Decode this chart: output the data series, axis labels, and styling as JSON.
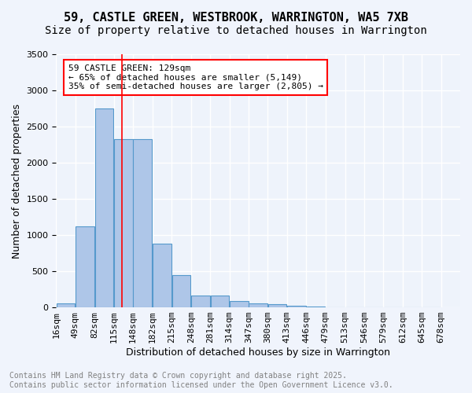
{
  "title_line1": "59, CASTLE GREEN, WESTBROOK, WARRINGTON, WA5 7XB",
  "title_line2": "Size of property relative to detached houses in Warrington",
  "xlabel": "Distribution of detached houses by size in Warrington",
  "ylabel": "Number of detached properties",
  "bar_color": "#aec6e8",
  "bar_edge_color": "#5599cc",
  "bins": [
    16,
    49,
    82,
    115,
    148,
    182,
    215,
    248,
    281,
    314,
    347,
    380,
    413,
    446,
    479,
    513,
    546,
    579,
    612,
    645,
    678
  ],
  "bin_labels": [
    "16sqm",
    "49sqm",
    "82sqm",
    "115sqm",
    "148sqm",
    "182sqm",
    "215sqm",
    "248sqm",
    "281sqm",
    "314sqm",
    "347sqm",
    "380sqm",
    "413sqm",
    "446sqm",
    "479sqm",
    "513sqm",
    "546sqm",
    "579sqm",
    "612sqm",
    "645sqm",
    "678sqm"
  ],
  "values": [
    50,
    1120,
    2750,
    2330,
    2330,
    880,
    450,
    165,
    165,
    90,
    55,
    40,
    25,
    10,
    5,
    5,
    5,
    5,
    5,
    5
  ],
  "red_line_x": 129,
  "annotation_title": "59 CASTLE GREEN: 129sqm",
  "annotation_line2": "← 65% of detached houses are smaller (5,149)",
  "annotation_line3": "35% of semi-detached houses are larger (2,805) →",
  "ylim": [
    0,
    3500
  ],
  "yticks": [
    0,
    500,
    1000,
    1500,
    2000,
    2500,
    3000,
    3500
  ],
  "background_color": "#eef3fb",
  "fig_background_color": "#f0f4fc",
  "grid_color": "#ffffff",
  "footer_line1": "Contains HM Land Registry data © Crown copyright and database right 2025.",
  "footer_line2": "Contains public sector information licensed under the Open Government Licence v3.0.",
  "title_fontsize": 11,
  "subtitle_fontsize": 10,
  "axis_label_fontsize": 9,
  "tick_fontsize": 8,
  "annotation_fontsize": 8,
  "footer_fontsize": 7
}
